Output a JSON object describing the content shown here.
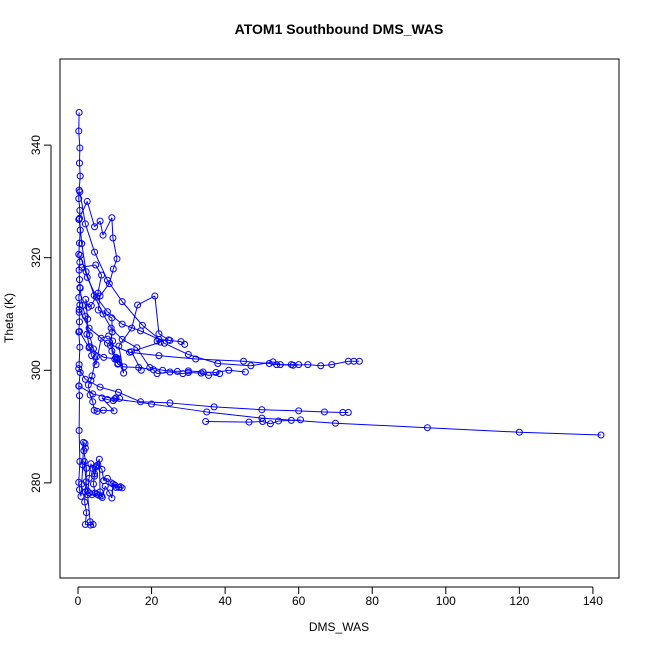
{
  "chart_data": {
    "type": "line",
    "title": "ATOM1 Southbound DMS_WAS",
    "xlabel": "DMS_WAS",
    "ylabel": "Theta (K)",
    "xlim": [
      -4.9,
      147.1
    ],
    "ylim": [
      263.1,
      355.3
    ],
    "xticks": [
      0,
      20,
      40,
      60,
      80,
      100,
      120,
      140
    ],
    "yticks": [
      280,
      300,
      320,
      340
    ],
    "grid": false,
    "marker": "open-circle",
    "series": [
      {
        "color": "#0000ff",
        "points": [
          [
            0.3,
            345.8
          ],
          [
            0.2,
            342.5
          ],
          [
            0.5,
            339.5
          ],
          [
            0.4,
            336.8
          ],
          [
            0.6,
            334.5
          ],
          [
            0.3,
            332.0
          ],
          [
            0.2,
            330.5
          ],
          [
            0.5,
            328.4
          ],
          [
            0.3,
            326.8
          ],
          [
            0.6,
            324.9
          ],
          [
            0.4,
            322.6
          ],
          [
            0.2,
            320.6
          ],
          [
            0.5,
            319.2
          ],
          [
            0.3,
            317.8
          ],
          [
            0.4,
            316.1
          ],
          [
            0.6,
            314.6
          ],
          [
            0.2,
            312.9
          ],
          [
            0.5,
            311.6
          ],
          [
            0.3,
            310.3
          ],
          [
            0.4,
            308.6
          ],
          [
            0.2,
            306.8
          ],
          [
            0.5,
            304.1
          ],
          [
            0.3,
            301.0
          ],
          [
            0.6,
            299.6
          ],
          [
            0.2,
            297.2
          ],
          [
            0.4,
            295.5
          ],
          [
            0.3,
            289.3
          ],
          [
            0.5,
            283.8
          ],
          [
            0.2,
            280.1
          ],
          [
            0.4,
            278.8
          ],
          [
            0.8,
            277.6
          ],
          [
            1.0,
            279.8
          ],
          [
            1.3,
            283.2
          ],
          [
            1.5,
            287.2
          ],
          [
            1.9,
            287.0
          ],
          [
            2.0,
            286.2
          ],
          [
            1.6,
            285.7
          ],
          [
            2.3,
            282.6
          ],
          [
            2.0,
            278.4
          ],
          [
            1.8,
            276.6
          ],
          [
            2.3,
            274.7
          ],
          [
            2.0,
            272.6
          ],
          [
            3.4,
            272.5
          ],
          [
            4.1,
            272.6
          ],
          [
            3.3,
            273.1
          ],
          [
            2.6,
            277.9
          ],
          [
            3.0,
            280.8
          ],
          [
            3.5,
            283.4
          ],
          [
            3.9,
            282.6
          ],
          [
            4.5,
            281.2
          ],
          [
            5.0,
            283.0
          ],
          [
            5.8,
            284.2
          ],
          [
            6.0,
            278.4
          ],
          [
            6.6,
            277.4
          ],
          [
            7.4,
            279.4
          ],
          [
            8.6,
            278.2
          ],
          [
            9.2,
            277.3
          ],
          [
            9.5,
            279.8
          ],
          [
            10.3,
            279.2
          ],
          [
            11.1,
            279.2
          ],
          [
            12.0,
            279.1
          ],
          [
            11.5,
            279.3
          ],
          [
            10.0,
            279.6
          ],
          [
            9.0,
            280.0
          ],
          [
            8.0,
            280.8
          ],
          [
            7.0,
            280.4
          ],
          [
            6.5,
            282.4
          ],
          [
            5.4,
            283.2
          ],
          [
            4.8,
            282.8
          ],
          [
            4.5,
            281.6
          ],
          [
            4.2,
            279.8
          ],
          [
            4.6,
            278.2
          ],
          [
            5.1,
            278.0
          ],
          [
            5.6,
            277.8
          ],
          [
            6.4,
            277.7
          ],
          [
            3.8,
            277.9
          ],
          [
            3.1,
            278.2
          ],
          [
            2.5,
            278.6
          ],
          [
            2.2,
            280.2
          ],
          [
            1.7,
            283.8
          ]
        ]
      },
      {
        "color": "#0000ff",
        "points": [
          [
            0.5,
            314.7
          ],
          [
            1.2,
            311.5
          ],
          [
            2.0,
            309.6
          ],
          [
            3.1,
            306.2
          ],
          [
            4.2,
            303.8
          ],
          [
            5.0,
            302.4
          ],
          [
            3.8,
            299.0
          ],
          [
            3.5,
            298.2
          ],
          [
            2.8,
            297.4
          ],
          [
            3.3,
            295.6
          ],
          [
            4.0,
            294.4
          ],
          [
            4.4,
            292.9
          ],
          [
            5.2,
            292.7
          ],
          [
            6.9,
            292.9
          ],
          [
            9.8,
            292.8
          ],
          [
            6.5,
            295.1
          ],
          [
            8.0,
            294.8
          ],
          [
            9.6,
            294.6
          ],
          [
            10.3,
            295.1
          ],
          [
            11.3,
            295.0
          ]
        ]
      },
      {
        "color": "#0000ff",
        "points": [
          [
            0.4,
            327.0
          ],
          [
            1.0,
            322.5
          ],
          [
            2.2,
            317.5
          ],
          [
            4.4,
            313.3
          ],
          [
            6.8,
            310.0
          ],
          [
            9.0,
            307.5
          ],
          [
            12.0,
            305.5
          ],
          [
            16.0,
            304.0
          ],
          [
            19.5,
            300.5
          ],
          [
            23.0,
            300.0
          ],
          [
            27.0,
            299.8
          ],
          [
            30.0,
            299.9
          ],
          [
            34.0,
            299.7
          ],
          [
            37.5,
            299.6
          ],
          [
            41.0,
            300.0
          ],
          [
            45.5,
            299.7
          ]
        ]
      },
      {
        "color": "#0000ff",
        "points": [
          [
            0.6,
            320.4
          ],
          [
            2.5,
            316.5
          ],
          [
            5.0,
            313.0
          ],
          [
            8.0,
            310.4
          ],
          [
            12.0,
            308.2
          ],
          [
            17.0,
            307.0
          ],
          [
            22.0,
            305.5
          ],
          [
            25.0,
            305.3
          ],
          [
            28.0,
            305.1
          ],
          [
            29.0,
            304.6
          ]
        ]
      },
      {
        "color": "#0000ff",
        "points": [
          [
            0.3,
            310.8
          ],
          [
            3.0,
            307.5
          ],
          [
            8.0,
            304.8
          ],
          [
            14.0,
            303.2
          ],
          [
            22.0,
            302.6
          ],
          [
            32.0,
            302.0
          ],
          [
            45.0,
            301.6
          ],
          [
            52.0,
            301.2
          ],
          [
            54.0,
            301.0
          ],
          [
            58.5,
            300.9
          ],
          [
            62.5,
            301.0
          ],
          [
            66.0,
            300.8
          ],
          [
            69.0,
            301.0
          ],
          [
            73.5,
            301.6
          ],
          [
            75.0,
            301.6
          ],
          [
            76.5,
            301.6
          ]
        ]
      },
      {
        "color": "#0000ff",
        "points": [
          [
            0.5,
            331.7
          ],
          [
            2.0,
            326.0
          ],
          [
            4.5,
            321.0
          ],
          [
            8.0,
            316.0
          ],
          [
            12.0,
            312.2
          ],
          [
            17.5,
            308.0
          ],
          [
            23.5,
            304.8
          ],
          [
            30.0,
            302.8
          ],
          [
            38.0,
            301.2
          ],
          [
            47.0,
            300.8
          ],
          [
            53.0,
            301.5
          ],
          [
            55.0,
            301.0
          ],
          [
            58.0,
            301.0
          ],
          [
            60.0,
            301.0
          ]
        ]
      },
      {
        "color": "#0000ff",
        "points": [
          [
            0.4,
            306.9
          ],
          [
            3.0,
            304.0
          ],
          [
            7.0,
            302.3
          ],
          [
            10.5,
            302.0
          ],
          [
            10.8,
            301.1
          ],
          [
            12.5,
            300.6
          ],
          [
            16.5,
            300.5
          ],
          [
            20.5,
            300.1
          ],
          [
            21.5,
            299.4
          ],
          [
            25.0,
            299.7
          ],
          [
            28.5,
            299.4
          ],
          [
            30.0,
            299.6
          ],
          [
            33.5,
            299.5
          ],
          [
            35.5,
            299.1
          ],
          [
            38.5,
            299.4
          ]
        ]
      },
      {
        "color": "#0000ff",
        "points": [
          [
            0.2,
            300.3
          ],
          [
            2.0,
            298.4
          ],
          [
            6.0,
            297.0
          ],
          [
            11.0,
            296.1
          ],
          [
            17.0,
            294.4
          ],
          [
            25.0,
            294.2
          ],
          [
            37.0,
            293.5
          ],
          [
            50.0,
            293.0
          ],
          [
            60.0,
            292.8
          ],
          [
            67.0,
            292.6
          ],
          [
            72.0,
            292.5
          ],
          [
            73.5,
            292.5
          ]
        ]
      },
      {
        "color": "#0000ff",
        "points": [
          [
            0.3,
            297.2
          ],
          [
            4.0,
            295.8
          ],
          [
            10.0,
            294.9
          ],
          [
            20.0,
            294.0
          ],
          [
            35.0,
            292.6
          ],
          [
            50.0,
            291.5
          ],
          [
            70.0,
            290.6
          ],
          [
            95.0,
            289.8
          ],
          [
            120.0,
            289.0
          ],
          [
            142.2,
            288.5
          ]
        ]
      },
      {
        "color": "#0000ff",
        "points": [
          [
            34.7,
            290.9
          ],
          [
            46.5,
            290.8
          ],
          [
            50.2,
            290.9
          ],
          [
            52.3,
            290.5
          ],
          [
            54.5,
            291.0
          ],
          [
            58.0,
            291.1
          ],
          [
            60.5,
            291.2
          ]
        ]
      },
      {
        "color": "#0000ff",
        "points": [
          [
            0.2,
            326.8
          ],
          [
            2.5,
            330.0
          ],
          [
            4.5,
            325.5
          ],
          [
            6.0,
            326.5
          ],
          [
            6.8,
            324.0
          ],
          [
            9.2,
            327.1
          ],
          [
            9.5,
            323.5
          ],
          [
            10.6,
            319.8
          ],
          [
            9.6,
            318.0
          ],
          [
            8.5,
            315.4
          ],
          [
            6.0,
            313.2
          ],
          [
            5.5,
            310.7
          ],
          [
            9.2,
            309.3
          ],
          [
            9.3,
            306.8
          ],
          [
            8.8,
            304.4
          ],
          [
            10.3,
            302.3
          ],
          [
            10.8,
            302.1
          ],
          [
            12.4,
            299.5
          ],
          [
            11.1,
            304.3
          ],
          [
            14.6,
            307.5
          ],
          [
            16.2,
            311.6
          ],
          [
            20.9,
            313.2
          ],
          [
            22.0,
            306.5
          ],
          [
            24.6,
            305.4
          ],
          [
            21.5,
            305.2
          ],
          [
            22.4,
            305.0
          ],
          [
            14.5,
            303.3
          ],
          [
            17.2,
            300.0
          ]
        ]
      },
      {
        "color": "#0000ff",
        "points": [
          [
            1.0,
            318.3
          ],
          [
            4.8,
            318.7
          ],
          [
            6.4,
            316.9
          ],
          [
            5.4,
            313.7
          ],
          [
            3.6,
            311.5
          ],
          [
            2.8,
            311.2
          ],
          [
            2.1,
            312.6
          ],
          [
            2.6,
            309.1
          ],
          [
            2.4,
            306.4
          ],
          [
            3.1,
            304.2
          ],
          [
            3.7,
            302.6
          ],
          [
            4.9,
            301.0
          ],
          [
            6.3,
            305.7
          ],
          [
            8.3,
            306.1
          ],
          [
            9.4,
            305.2
          ],
          [
            9.2,
            303.4
          ],
          [
            10.0,
            302.0
          ],
          [
            10.5,
            301.9
          ],
          [
            10.9,
            301.2
          ]
        ]
      }
    ]
  }
}
